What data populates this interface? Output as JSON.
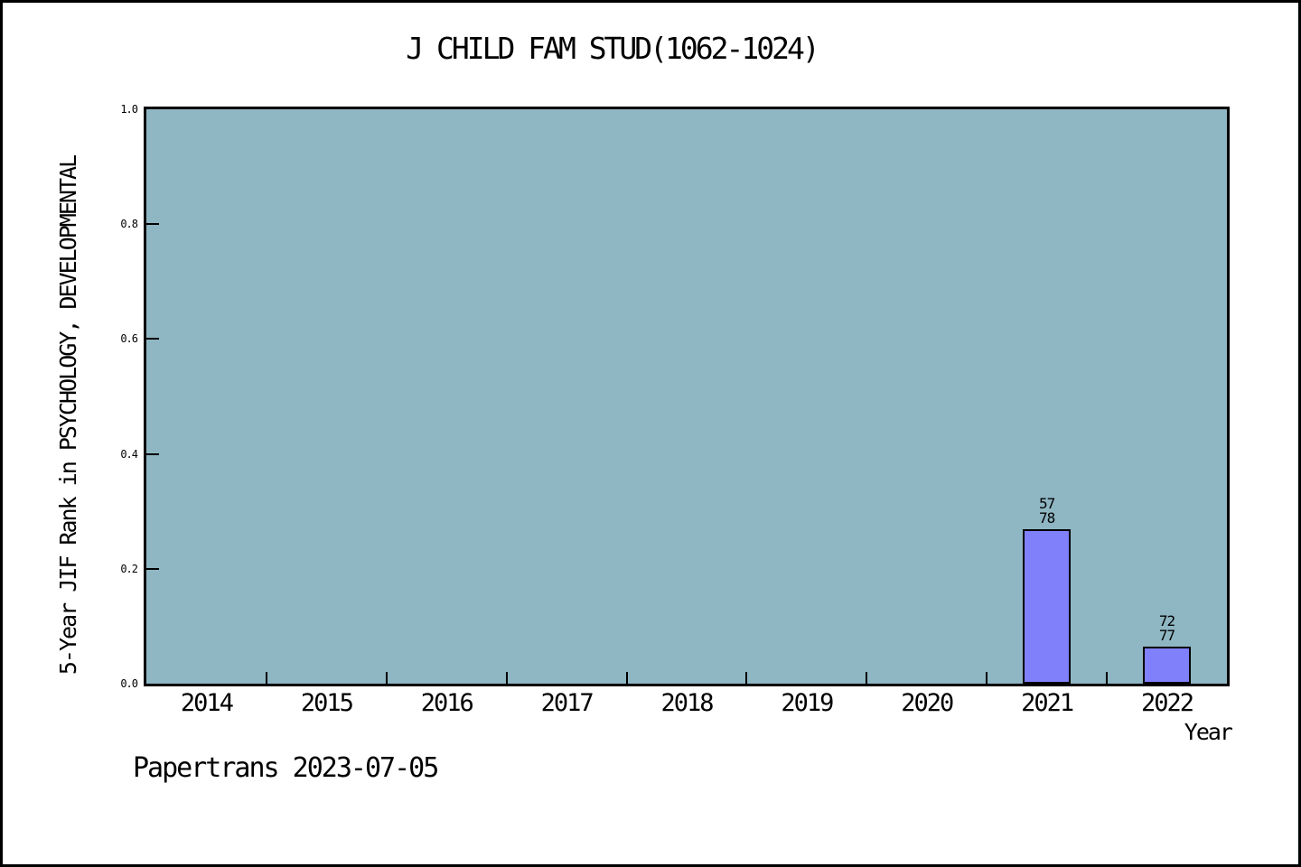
{
  "footer": {
    "text": "Papertrans 2023-07-05"
  },
  "chart_data": {
    "type": "bar",
    "title": "J CHILD FAM STUD(1062-1024)",
    "xlabel": "Year",
    "ylabel": "5-Year JIF Rank in PSYCHOLOGY, DEVELOPMENTAL",
    "categories": [
      "2014",
      "2015",
      "2016",
      "2017",
      "2018",
      "2019",
      "2020",
      "2021",
      "2022"
    ],
    "values": [
      null,
      null,
      null,
      null,
      null,
      null,
      null,
      0.2692,
      0.0649
    ],
    "bar_labels": [
      null,
      null,
      null,
      null,
      null,
      null,
      null,
      [
        "57",
        "78"
      ],
      [
        "72",
        "77"
      ]
    ],
    "ranks": [
      null,
      null,
      null,
      null,
      null,
      null,
      null,
      "57/78",
      "72/77"
    ],
    "ylim": [
      0,
      1
    ],
    "yticks": [
      "0.0",
      "0.2",
      "0.4",
      "0.6",
      "0.8",
      "1.0"
    ],
    "legend": null,
    "grid": false,
    "colors": {
      "plot_background": "#8FB6C3",
      "bar_fill": "#8080FA",
      "bar_edge": "#000000",
      "text": "#000000"
    }
  }
}
